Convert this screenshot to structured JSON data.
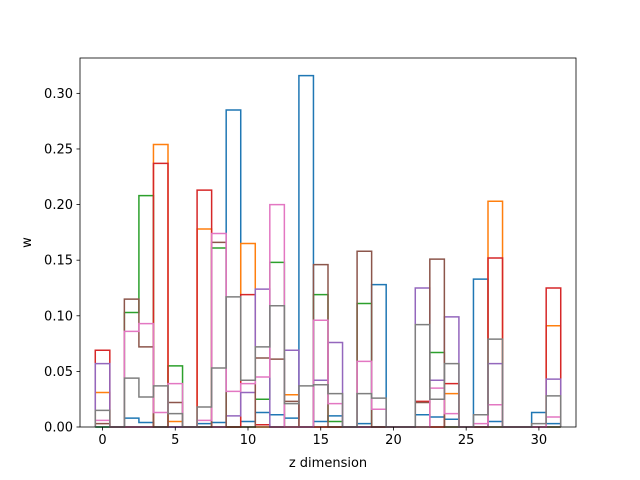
{
  "chart_data": {
    "type": "bar",
    "style": "step-histogram",
    "xlabel": "z dimension",
    "ylabel": "w",
    "xlim": [
      -1.55,
      32.55
    ],
    "ylim": [
      0.0,
      0.3318
    ],
    "grid": false,
    "x_ticks": [
      0,
      5,
      10,
      15,
      20,
      25,
      30
    ],
    "x_tick_labels": [
      "0",
      "5",
      "10",
      "15",
      "20",
      "25",
      "30"
    ],
    "y_ticks": [
      0.0,
      0.05,
      0.1,
      0.15,
      0.2,
      0.25,
      0.3
    ],
    "y_tick_labels": [
      "0.00",
      "0.05",
      "0.10",
      "0.15",
      "0.20",
      "0.25",
      "0.30"
    ],
    "bins": [
      0,
      1,
      2,
      3,
      4,
      5,
      6,
      7,
      8,
      9,
      10,
      11,
      12,
      13,
      14,
      15,
      16,
      17,
      18,
      19,
      20,
      21,
      22,
      23,
      24,
      25,
      26,
      27,
      28,
      29,
      30,
      31
    ],
    "bar_width": 1.0,
    "series": [
      {
        "color": "#1f77b4",
        "values": [
          0.0,
          0.0,
          0.008,
          0.004,
          0.0,
          0.0,
          0.0,
          0.003,
          0.004,
          0.285,
          0.005,
          0.013,
          0.011,
          0.008,
          0.316,
          0.005,
          0.01,
          0.0,
          0.003,
          0.128,
          0.0,
          0.0,
          0.011,
          0.009,
          0.007,
          0.0,
          0.133,
          0.005,
          0.0,
          0.0,
          0.013,
          0.003
        ]
      },
      {
        "color": "#ff7f0e",
        "values": [
          0.031,
          0.0,
          0.0,
          0.0,
          0.254,
          0.005,
          0.0,
          0.178,
          0.0,
          0.0,
          0.165,
          0.0,
          0.0,
          0.029,
          0.0,
          0.0,
          0.0,
          0.0,
          0.0,
          0.0,
          0.0,
          0.0,
          0.0,
          0.0,
          0.03,
          0.0,
          0.0,
          0.203,
          0.0,
          0.0,
          0.0,
          0.091
        ]
      },
      {
        "color": "#2ca02c",
        "values": [
          0.0,
          0.0,
          0.103,
          0.208,
          0.0,
          0.055,
          0.0,
          0.0,
          0.161,
          0.0,
          0.0,
          0.025,
          0.148,
          0.0,
          0.0,
          0.119,
          0.005,
          0.0,
          0.111,
          0.0,
          0.0,
          0.0,
          0.0,
          0.067,
          0.0,
          0.0,
          0.0,
          0.0,
          0.0,
          0.0,
          0.0,
          0.0
        ]
      },
      {
        "color": "#d62728",
        "values": [
          0.069,
          0.0,
          0.0,
          0.0,
          0.237,
          0.0,
          0.0,
          0.213,
          0.0,
          0.0,
          0.119,
          0.002,
          0.0,
          0.0,
          0.0,
          0.0,
          0.0,
          0.0,
          0.0,
          0.0,
          0.0,
          0.0,
          0.023,
          0.0,
          0.039,
          0.0,
          0.0,
          0.152,
          0.0,
          0.0,
          0.0,
          0.125
        ]
      },
      {
        "color": "#9467bd",
        "values": [
          0.057,
          0.0,
          0.0,
          0.0,
          0.0,
          0.0,
          0.0,
          0.0,
          0.0,
          0.01,
          0.031,
          0.124,
          0.0,
          0.069,
          0.0,
          0.042,
          0.076,
          0.0,
          0.0,
          0.0,
          0.0,
          0.0,
          0.125,
          0.042,
          0.099,
          0.0,
          0.0,
          0.057,
          0.0,
          0.0,
          0.0,
          0.043
        ]
      },
      {
        "color": "#8c564b",
        "values": [
          0.003,
          0.0,
          0.115,
          0.072,
          0.0,
          0.022,
          0.0,
          0.0,
          0.166,
          0.0,
          0.0,
          0.062,
          0.061,
          0.023,
          0.0,
          0.146,
          0.0,
          0.0,
          0.158,
          0.0,
          0.0,
          0.0,
          0.022,
          0.151,
          0.0,
          0.0,
          0.0,
          0.0,
          0.0,
          0.0,
          0.0,
          0.0
        ]
      },
      {
        "color": "#e377c2",
        "values": [
          0.006,
          0.0,
          0.086,
          0.093,
          0.013,
          0.039,
          0.0,
          0.006,
          0.174,
          0.032,
          0.039,
          0.045,
          0.2,
          0.0,
          0.0,
          0.096,
          0.021,
          0.0,
          0.059,
          0.016,
          0.0,
          0.0,
          0.0,
          0.035,
          0.012,
          0.0,
          0.003,
          0.02,
          0.0,
          0.0,
          0.0,
          0.009
        ]
      },
      {
        "color": "#7f7f7f",
        "values": [
          0.015,
          0.0,
          0.044,
          0.027,
          0.037,
          0.012,
          0.0,
          0.018,
          0.053,
          0.117,
          0.042,
          0.072,
          0.109,
          0.021,
          0.037,
          0.038,
          0.03,
          0.0,
          0.03,
          0.026,
          0.0,
          0.0,
          0.092,
          0.025,
          0.057,
          0.0,
          0.011,
          0.079,
          0.0,
          0.0,
          0.003,
          0.028
        ]
      }
    ]
  }
}
